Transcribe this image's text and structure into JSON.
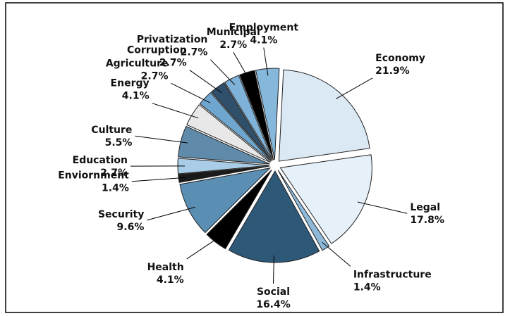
{
  "chart_data": {
    "type": "pie",
    "categories": [
      "Economy",
      "Legal",
      "Infrastructure",
      "Social",
      "Health",
      "Security",
      "Enviornment",
      "Education",
      "Culture",
      "Energy",
      "Agriculture",
      "Corruption",
      "Privatization",
      "Municipal",
      "Employment"
    ],
    "values": [
      21.9,
      17.8,
      1.4,
      16.4,
      4.1,
      9.6,
      1.4,
      2.7,
      5.5,
      4.1,
      2.7,
      2.7,
      2.7,
      2.7,
      4.1
    ],
    "value_labels": [
      "21.9%",
      "17.8%",
      "1.4%",
      "16.4%",
      "4.1%",
      "9.6%",
      "1.4%",
      "2.7%",
      "5.5%",
      "4.1%",
      "2.7%",
      "2.7%",
      "2.7%",
      "2.7%",
      "4.1%"
    ],
    "colors": [
      "#dbe9f5",
      "#e6f0f8",
      "#8db8d8",
      "#2e5878",
      "#000000",
      "#5b8eb3",
      "#1a1a1a",
      "#a9cde6",
      "#5f8aaa",
      "#e8e8e8",
      "#6fa6cf",
      "#2f4f6a",
      "#7fb2d8",
      "#000000",
      "#86b8dc"
    ]
  }
}
